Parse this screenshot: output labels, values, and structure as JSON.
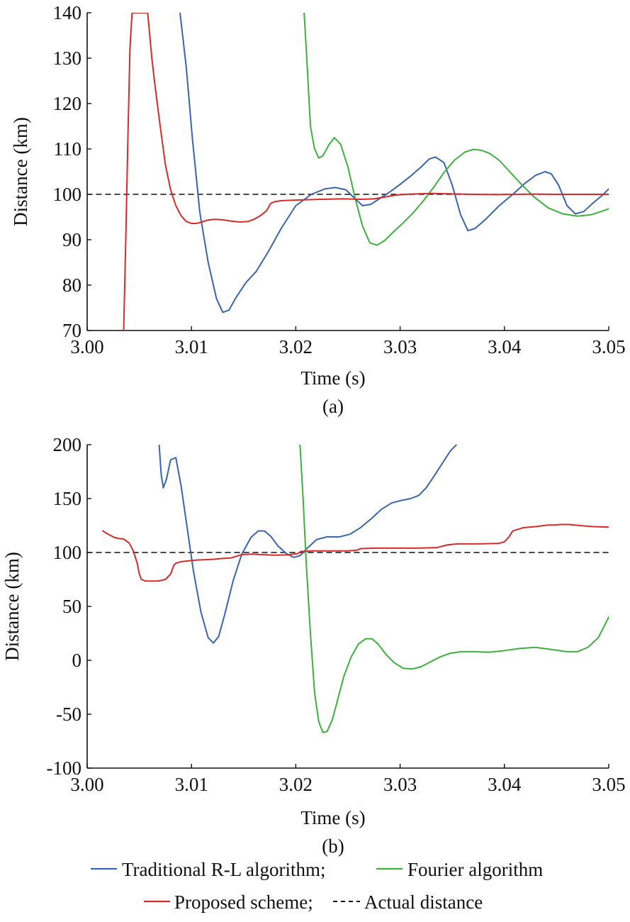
{
  "chart_data": [
    {
      "panel": "(a)",
      "type": "line",
      "xlabel": "Time (s)",
      "ylabel": "Distance (km)",
      "xlim": [
        3.0,
        3.05
      ],
      "ylim": [
        70,
        140
      ],
      "xticks": [
        "3.00",
        "3.01",
        "3.02",
        "3.03",
        "3.04",
        "3.05"
      ],
      "yticks": [
        "70",
        "80",
        "90",
        "100",
        "110",
        "120",
        "130",
        "140"
      ],
      "grid": false,
      "series": [
        {
          "name": "Traditional R-L algorithm",
          "color": "#3a64ad",
          "x": [
            3.0089,
            3.0095,
            3.0101,
            3.0108,
            3.0116,
            3.0124,
            3.013,
            3.0136,
            3.0142,
            3.0152,
            3.0162,
            3.0174,
            3.0186,
            3.02,
            3.0215,
            3.0228,
            3.0238,
            3.0248,
            3.0257,
            3.0264,
            3.0272,
            3.028,
            3.029,
            3.03,
            3.031,
            3.032,
            3.0328,
            3.0334,
            3.0342,
            3.035,
            3.0358,
            3.0365,
            3.0372,
            3.0382,
            3.0395,
            3.0408,
            3.042,
            3.043,
            3.0439,
            3.0445,
            3.0452,
            3.046,
            3.0468,
            3.0476,
            3.0486,
            3.0494,
            3.05
          ],
          "y": [
            140,
            128,
            112,
            96,
            85,
            77,
            74,
            74.5,
            77,
            80.5,
            83,
            87.5,
            92.5,
            97.5,
            100,
            101.2,
            101.5,
            101,
            99,
            97.5,
            97.8,
            99,
            100.5,
            102.2,
            104,
            106,
            107.8,
            108.2,
            107,
            102,
            95.5,
            92,
            92.5,
            94.5,
            97.5,
            100,
            102.5,
            104.2,
            105,
            104.5,
            102,
            97.5,
            95.7,
            96.2,
            98.3,
            99.8,
            101.2
          ]
        },
        {
          "name": "Fourier algorithm",
          "color": "#3db13d",
          "x": [
            3.0208,
            3.0211,
            3.0214,
            3.0218,
            3.0222,
            3.0226,
            3.0232,
            3.0237,
            3.0243,
            3.025,
            3.0257,
            3.0264,
            3.0271,
            3.0278,
            3.0285,
            3.0293,
            3.0302,
            3.0312,
            3.0322,
            3.0332,
            3.0342,
            3.0352,
            3.0362,
            3.037,
            3.0378,
            3.0386,
            3.0395,
            3.0405,
            3.0415,
            3.0428,
            3.0442,
            3.0456,
            3.047,
            3.0483,
            3.0495,
            3.05
          ],
          "y": [
            140,
            128,
            115,
            110,
            108,
            108.5,
            111,
            112.5,
            111,
            106,
            99,
            93,
            89.3,
            88.8,
            89.8,
            91.6,
            93.5,
            95.8,
            98.5,
            101.5,
            104.8,
            107.5,
            109.3,
            109.9,
            109.7,
            109,
            107.5,
            105,
            102.5,
            99.5,
            97,
            95.7,
            95.2,
            95.5,
            96.4,
            96.8
          ]
        },
        {
          "name": "Proposed scheme",
          "color": "#d72b2b",
          "x": [
            3.0035,
            3.0037,
            3.0039,
            3.0041,
            3.0043,
            3.0058,
            3.006,
            3.0062,
            3.0065,
            3.007,
            3.0075,
            3.008,
            3.0085,
            3.009,
            3.0095,
            3.01,
            3.0105,
            3.011,
            3.0115,
            3.0122,
            3.013,
            3.0138,
            3.0146,
            3.0154,
            3.016,
            3.0166,
            3.0172,
            3.0176,
            3.018,
            3.0186,
            3.0195,
            3.021,
            3.0225,
            3.0245,
            3.0262,
            3.0275,
            3.0285,
            3.0295,
            3.0305,
            3.0315,
            3.033,
            3.035,
            3.037,
            3.039,
            3.041,
            3.043,
            3.045,
            3.047,
            3.049,
            3.05
          ],
          "y": [
            70,
            90,
            112,
            132,
            140,
            140,
            135,
            130,
            124,
            115,
            106.5,
            101,
            97.5,
            95.3,
            94,
            93.6,
            93.6,
            93.9,
            94.3,
            94.5,
            94.4,
            94.1,
            93.9,
            94,
            94.5,
            95.3,
            96.4,
            98,
            98.4,
            98.6,
            98.7,
            98.8,
            98.9,
            99,
            98.9,
            99,
            99.4,
            99.8,
            100,
            100.1,
            100.2,
            100.1,
            100,
            99.95,
            100,
            100.05,
            100,
            100,
            100,
            100
          ]
        },
        {
          "name": "Actual distance",
          "color": "#111111",
          "dashed": true,
          "x": [
            3.0,
            3.05
          ],
          "y": [
            100,
            100
          ]
        }
      ]
    },
    {
      "panel": "(b)",
      "type": "line",
      "xlabel": "Time (s)",
      "ylabel": "Distance (km)",
      "xlim": [
        3.0,
        3.05
      ],
      "ylim": [
        -100,
        200
      ],
      "xticks": [
        "3.00",
        "3.01",
        "3.02",
        "3.03",
        "3.04",
        "3.05"
      ],
      "yticks": [
        "-100",
        "-50",
        "0",
        "50",
        "100",
        "150",
        "200"
      ],
      "grid": false,
      "series": [
        {
          "name": "Traditional R-L algorithm",
          "color": "#3a64ad",
          "x": [
            3.0069,
            3.0071,
            3.0073,
            3.0076,
            3.008,
            3.0085,
            3.009,
            3.0096,
            3.0102,
            3.0109,
            3.0116,
            3.0121,
            3.0126,
            3.0132,
            3.014,
            3.0148,
            3.0157,
            3.0164,
            3.017,
            3.0176,
            3.0183,
            3.0191,
            3.0198,
            3.0204,
            3.0211,
            3.022,
            3.023,
            3.0242,
            3.0252,
            3.0262,
            3.0272,
            3.0282,
            3.0292,
            3.03,
            3.031,
            3.0318,
            3.0325,
            3.0332,
            3.034,
            3.0348,
            3.0354
          ],
          "y": [
            200,
            172,
            160,
            168,
            186,
            188,
            162,
            122,
            82,
            45,
            21,
            16,
            22,
            43,
            74,
            98,
            114,
            120,
            120,
            115,
            106,
            99,
            95.5,
            97,
            104,
            112,
            114.5,
            114.5,
            117,
            123,
            131,
            140,
            146,
            148,
            150,
            153,
            160,
            170,
            182,
            194,
            200
          ]
        },
        {
          "name": "Fourier algorithm",
          "color": "#3db13d",
          "x": [
            3.0204,
            3.0207,
            3.021,
            3.0214,
            3.0218,
            3.0222,
            3.0226,
            3.023,
            3.0235,
            3.024,
            3.0246,
            3.0253,
            3.026,
            3.0267,
            3.0273,
            3.0279,
            3.0286,
            3.0294,
            3.0303,
            3.0312,
            3.032,
            3.0328,
            3.0338,
            3.0348,
            3.0358,
            3.037,
            3.0385,
            3.04,
            3.0415,
            3.043,
            3.0445,
            3.046,
            3.047,
            3.048,
            3.049,
            3.05
          ],
          "y": [
            200,
            150,
            90,
            25,
            -30,
            -57,
            -67,
            -66,
            -55,
            -37,
            -15,
            3,
            15,
            20,
            20,
            15,
            6,
            -2,
            -7.5,
            -8,
            -6,
            -2,
            3,
            6.5,
            8,
            8,
            7.5,
            9,
            11,
            12,
            10,
            8,
            8,
            12,
            21,
            40
          ]
        },
        {
          "name": "Proposed scheme",
          "color": "#d72b2b",
          "x": [
            3.0015,
            3.002,
            3.0026,
            3.003,
            3.0035,
            3.004,
            3.0044,
            3.0048,
            3.005,
            3.0052,
            3.0056,
            3.0062,
            3.0068,
            3.0075,
            3.008,
            3.0083,
            3.0085,
            3.009,
            3.0095,
            3.0105,
            3.0118,
            3.013,
            3.0138,
            3.0143,
            3.0148,
            3.0158,
            3.0168,
            3.018,
            3.0192,
            3.0202,
            3.0205,
            3.0215,
            3.0232,
            3.0248,
            3.0258,
            3.0262,
            3.0275,
            3.0295,
            3.0315,
            3.0335,
            3.0345,
            3.0355,
            3.0375,
            3.0395,
            3.04,
            3.0404,
            3.0408,
            3.0418,
            3.043,
            3.0442,
            3.0448,
            3.0454,
            3.0462,
            3.0472,
            3.0485,
            3.05
          ],
          "y": [
            120,
            117,
            114,
            113,
            112.5,
            109,
            102,
            90,
            80,
            75,
            73.5,
            73.5,
            73.5,
            75,
            80,
            88,
            90,
            91.5,
            92,
            93,
            93.5,
            94.5,
            95,
            96.5,
            98,
            98.5,
            98,
            97.5,
            97.8,
            99,
            101,
            101.5,
            101.5,
            101.5,
            102,
            103.5,
            104,
            104,
            104,
            104.5,
            107,
            108,
            108,
            108.5,
            110,
            114,
            120,
            123,
            124,
            125.5,
            125.5,
            126,
            126,
            125,
            124,
            123.5
          ]
        },
        {
          "name": "Actual distance",
          "color": "#111111",
          "dashed": true,
          "x": [
            3.0,
            3.05
          ],
          "y": [
            100,
            100
          ]
        }
      ]
    }
  ],
  "legend": [
    {
      "label": "Traditional R-L algorithm;",
      "color": "#3a64ad",
      "style": "solid"
    },
    {
      "label": "Fourier algorithm",
      "color": "#3db13d",
      "style": "solid"
    },
    {
      "label": "Proposed scheme;",
      "color": "#d72b2b",
      "style": "solid"
    },
    {
      "label": "Actual distance",
      "color": "#111111",
      "style": "dashed"
    }
  ]
}
